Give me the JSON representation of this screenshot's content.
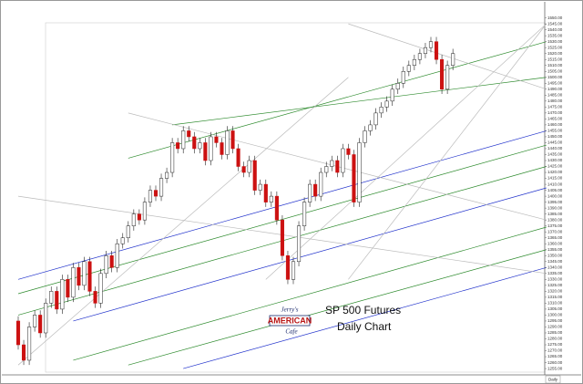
{
  "chart_data": {
    "type": "candlestick",
    "title": "SP 500 Futures",
    "subtitle": "Daily Chart",
    "timeframe": "Daily",
    "up_color": "#ffffff",
    "down_color": "#cc1111",
    "open": [
      1295,
      1275,
      1262,
      1290,
      1300,
      1285,
      1310,
      1320,
      1305,
      1330,
      1315,
      1340,
      1325,
      1345,
      1320,
      1310,
      1335,
      1350,
      1340,
      1360,
      1365,
      1375,
      1385,
      1380,
      1395,
      1405,
      1400,
      1415,
      1420,
      1445,
      1440,
      1455,
      1450,
      1440,
      1445,
      1430,
      1450,
      1445,
      1435,
      1455,
      1440,
      1425,
      1420,
      1430,
      1405,
      1410,
      1395,
      1400,
      1380,
      1350,
      1330,
      1345,
      1375,
      1395,
      1410,
      1400,
      1420,
      1425,
      1430,
      1420,
      1440,
      1435,
      1395,
      1445,
      1455,
      1460,
      1470,
      1475,
      1480,
      1490,
      1495,
      1505,
      1510,
      1515,
      1520,
      1525,
      1530,
      1515,
      1490,
      1510
    ],
    "high": [
      1299,
      1279,
      1294,
      1304,
      1304,
      1314,
      1324,
      1324,
      1334,
      1334,
      1344,
      1344,
      1349,
      1349,
      1324,
      1339,
      1354,
      1354,
      1364,
      1369,
      1379,
      1389,
      1389,
      1399,
      1409,
      1409,
      1419,
      1424,
      1449,
      1449,
      1459,
      1459,
      1454,
      1449,
      1449,
      1454,
      1454,
      1449,
      1459,
      1459,
      1444,
      1429,
      1434,
      1434,
      1414,
      1414,
      1404,
      1404,
      1384,
      1354,
      1349,
      1379,
      1399,
      1414,
      1414,
      1424,
      1429,
      1434,
      1434,
      1444,
      1444,
      1439,
      1449,
      1459,
      1464,
      1474,
      1479,
      1484,
      1494,
      1499,
      1509,
      1514,
      1519,
      1524,
      1529,
      1534,
      1534,
      1519,
      1514,
      1524
    ],
    "low": [
      1271,
      1258,
      1258,
      1286,
      1281,
      1281,
      1306,
      1301,
      1301,
      1311,
      1311,
      1321,
      1321,
      1316,
      1306,
      1306,
      1331,
      1336,
      1336,
      1356,
      1361,
      1371,
      1376,
      1376,
      1391,
      1396,
      1396,
      1411,
      1416,
      1436,
      1436,
      1446,
      1436,
      1436,
      1426,
      1426,
      1441,
      1431,
      1431,
      1436,
      1421,
      1416,
      1416,
      1401,
      1401,
      1391,
      1391,
      1376,
      1346,
      1326,
      1326,
      1341,
      1371,
      1391,
      1396,
      1396,
      1416,
      1421,
      1416,
      1416,
      1431,
      1391,
      1391,
      1441,
      1451,
      1456,
      1466,
      1471,
      1476,
      1486,
      1491,
      1501,
      1506,
      1511,
      1516,
      1521,
      1511,
      1486,
      1486,
      1506
    ],
    "close": [
      1275,
      1262,
      1290,
      1300,
      1285,
      1310,
      1320,
      1305,
      1330,
      1315,
      1340,
      1325,
      1345,
      1320,
      1310,
      1335,
      1350,
      1340,
      1360,
      1365,
      1375,
      1385,
      1380,
      1395,
      1405,
      1400,
      1415,
      1420,
      1445,
      1440,
      1455,
      1450,
      1440,
      1445,
      1430,
      1450,
      1445,
      1435,
      1455,
      1440,
      1425,
      1420,
      1430,
      1405,
      1410,
      1395,
      1400,
      1380,
      1350,
      1330,
      1345,
      1375,
      1395,
      1410,
      1400,
      1420,
      1425,
      1430,
      1420,
      1440,
      1435,
      1395,
      1445,
      1455,
      1460,
      1470,
      1475,
      1480,
      1490,
      1495,
      1505,
      1510,
      1515,
      1520,
      1525,
      1530,
      1515,
      1490,
      1510,
      1520
    ],
    "trendlines": [
      {
        "color": "#2e8b2e",
        "from": [
          20,
          1432
        ],
        "to": [
          96,
          1530
        ]
      },
      {
        "color": "#2e8b2e",
        "from": [
          0,
          1318
        ],
        "to": [
          96,
          1443
        ]
      },
      {
        "color": "#2e8b2e",
        "from": [
          0,
          1300
        ],
        "to": [
          96,
          1425
        ]
      },
      {
        "color": "#2e8b2e",
        "from": [
          10,
          1262
        ],
        "to": [
          96,
          1374
        ]
      },
      {
        "color": "#2e8b2e",
        "from": [
          20,
          1258
        ],
        "to": [
          96,
          1355
        ]
      },
      {
        "color": "#2e8b2e",
        "from": [
          28,
          1460
        ],
        "to": [
          96,
          1500
        ]
      },
      {
        "color": "#2233cc",
        "from": [
          0,
          1330
        ],
        "to": [
          96,
          1455
        ]
      },
      {
        "color": "#2233cc",
        "from": [
          10,
          1295
        ],
        "to": [
          96,
          1407
        ]
      },
      {
        "color": "#2233cc",
        "from": [
          30,
          1255
        ],
        "to": [
          96,
          1340
        ]
      },
      {
        "color": "#bbbbbb",
        "from": [
          45,
          1330
        ],
        "to": [
          96,
          1545
        ]
      },
      {
        "color": "#bbbbbb",
        "from": [
          60,
          1330
        ],
        "to": [
          96,
          1545
        ]
      },
      {
        "color": "#bbbbbb",
        "from": [
          0,
          1258
        ],
        "to": [
          60,
          1500
        ]
      },
      {
        "color": "#bbbbbb",
        "from": [
          60,
          1545
        ],
        "to": [
          96,
          1490
        ]
      },
      {
        "color": "#bbbbbb",
        "from": [
          20,
          1470
        ],
        "to": [
          96,
          1380
        ]
      },
      {
        "color": "#bbbbbb",
        "from": [
          0,
          1400
        ],
        "to": [
          96,
          1335
        ]
      }
    ],
    "ylim": [
      1252,
      1552
    ],
    "yticks": [
      {
        "value": 1255,
        "label": "1255.00"
      },
      {
        "value": 1260,
        "label": "1260.00"
      },
      {
        "value": 1265,
        "label": "1265.00"
      },
      {
        "value": 1270,
        "label": "1270.00"
      },
      {
        "value": 1275,
        "label": "1275.00"
      },
      {
        "value": 1280,
        "label": "1280.00"
      },
      {
        "value": 1285,
        "label": "1285.00"
      },
      {
        "value": 1290,
        "label": "1290.00"
      },
      {
        "value": 1295,
        "label": "1295.00"
      },
      {
        "value": 1300,
        "label": "1300.00"
      },
      {
        "value": 1305,
        "label": "1305.00"
      },
      {
        "value": 1310,
        "label": "1310.00"
      },
      {
        "value": 1315,
        "label": "1315.00"
      },
      {
        "value": 1320,
        "label": "1320.00"
      },
      {
        "value": 1325,
        "label": "1325.00"
      },
      {
        "value": 1330,
        "label": "1330.00"
      },
      {
        "value": 1335,
        "label": "1335.00"
      },
      {
        "value": 1340,
        "label": "1340.00"
      },
      {
        "value": 1345,
        "label": "1345.00"
      },
      {
        "value": 1350,
        "label": "1350.00"
      },
      {
        "value": 1355,
        "label": "1355.00"
      },
      {
        "value": 1360,
        "label": "1360.00"
      },
      {
        "value": 1365,
        "label": "1365.00"
      },
      {
        "value": 1370,
        "label": "1370.00"
      },
      {
        "value": 1375,
        "label": "1375.00"
      },
      {
        "value": 1380,
        "label": "1380.00"
      },
      {
        "value": 1385,
        "label": "1385.00"
      },
      {
        "value": 1390,
        "label": "1390.00"
      },
      {
        "value": 1395,
        "label": "1395.00"
      },
      {
        "value": 1400,
        "label": "1400.00"
      },
      {
        "value": 1405,
        "label": "1405.00"
      },
      {
        "value": 1410,
        "label": "1410.00"
      },
      {
        "value": 1415,
        "label": "1415.00"
      },
      {
        "value": 1420,
        "label": "1420.00"
      },
      {
        "value": 1425,
        "label": "1425.00"
      },
      {
        "value": 1430,
        "label": "1430.00"
      },
      {
        "value": 1435,
        "label": "1435.00"
      },
      {
        "value": 1440,
        "label": "1440.00"
      },
      {
        "value": 1445,
        "label": "1445.00"
      },
      {
        "value": 1450,
        "label": "1450.00"
      },
      {
        "value": 1455,
        "label": "1455.00"
      },
      {
        "value": 1460,
        "label": "1460.00"
      },
      {
        "value": 1465,
        "label": "1465.00"
      },
      {
        "value": 1470,
        "label": "1470.00"
      },
      {
        "value": 1475,
        "label": "1475.00"
      },
      {
        "value": 1480,
        "label": "1480.00"
      },
      {
        "value": 1485,
        "label": "1485.00"
      },
      {
        "value": 1490,
        "label": "1490.00"
      },
      {
        "value": 1495,
        "label": "1495.00"
      },
      {
        "value": 1500,
        "label": "1500.00"
      },
      {
        "value": 1505,
        "label": "1505.00"
      },
      {
        "value": 1510,
        "label": "1510.00"
      },
      {
        "value": 1515,
        "label": "1515.00"
      },
      {
        "value": 1520,
        "label": "1520.00"
      },
      {
        "value": 1525,
        "label": "1525.00"
      },
      {
        "value": 1530,
        "label": "1530.00"
      },
      {
        "value": 1535,
        "label": "1535.00"
      },
      {
        "value": 1540,
        "label": "1540.00"
      },
      {
        "value": 1545,
        "label": "1545.00"
      },
      {
        "value": 1550,
        "label": "1550.00"
      }
    ]
  },
  "logo": {
    "line1": "Jerry's",
    "line2": "AMERICAN",
    "line3": "Cafe"
  }
}
